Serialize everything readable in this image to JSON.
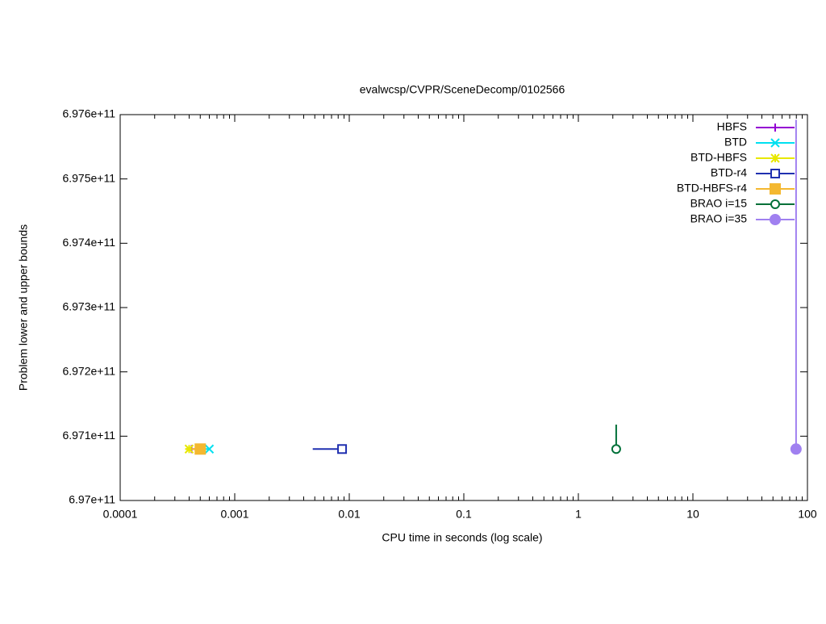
{
  "chart_data": {
    "type": "line",
    "title": "evalwcsp/CVPR/SceneDecomp/0102566",
    "xlabel": "CPU time in seconds (log scale)",
    "ylabel": "Problem lower and upper bounds",
    "xscale": "log",
    "xlim": [
      0.0001,
      100
    ],
    "xticks": [
      0.0001,
      0.001,
      0.01,
      0.1,
      1,
      10,
      100
    ],
    "ylim": [
      697000000000.0,
      697600000000.0
    ],
    "yticks": [
      {
        "value": 697000000000.0,
        "label": "6.97e+11"
      },
      {
        "value": 697100000000.0,
        "label": "6.971e+11"
      },
      {
        "value": 697200000000.0,
        "label": "6.972e+11"
      },
      {
        "value": 697300000000.0,
        "label": "6.973e+11"
      },
      {
        "value": 697400000000.0,
        "label": "6.974e+11"
      },
      {
        "value": 697500000000.0,
        "label": "6.975e+11"
      },
      {
        "value": 697600000000.0,
        "label": "6.976e+11"
      }
    ],
    "legend": "top-right",
    "series": [
      {
        "name": "HBFS",
        "color": "#9400d3",
        "marker": "plus",
        "x": [
          0.00038,
          0.00042
        ],
        "values": [
          697080000000.0,
          697080000000.0
        ]
      },
      {
        "name": "BTD",
        "color": "#00e0f0",
        "marker": "cross",
        "x": [
          0.00045,
          0.0006
        ],
        "values": [
          697080000000.0,
          697080000000.0
        ]
      },
      {
        "name": "BTD-HBFS",
        "color": "#e8e800",
        "marker": "star",
        "x": [
          0.00037,
          0.0004
        ],
        "values": [
          697080000000.0,
          697080000000.0
        ]
      },
      {
        "name": "BTD-r4",
        "color": "#2030b0",
        "marker": "open-square",
        "x": [
          0.0048,
          0.00865
        ],
        "values": [
          697080000000.0,
          697080000000.0
        ]
      },
      {
        "name": "BTD-HBFS-r4",
        "color": "#f4b830",
        "marker": "square",
        "x": [
          0.00042,
          0.0005
        ],
        "values": [
          697080000000.0,
          697080000000.0
        ]
      },
      {
        "name": "BRAO i=15",
        "color": "#007038",
        "marker": "open-circle",
        "x": [
          2.14,
          2.14
        ],
        "values": [
          697118000000.0,
          697080000000.0
        ]
      },
      {
        "name": "BRAO i=35",
        "color": "#a080f0",
        "marker": "circle",
        "x": [
          79.5,
          79.5
        ],
        "values": [
          697592000000.0,
          697080000000.0
        ]
      }
    ]
  }
}
